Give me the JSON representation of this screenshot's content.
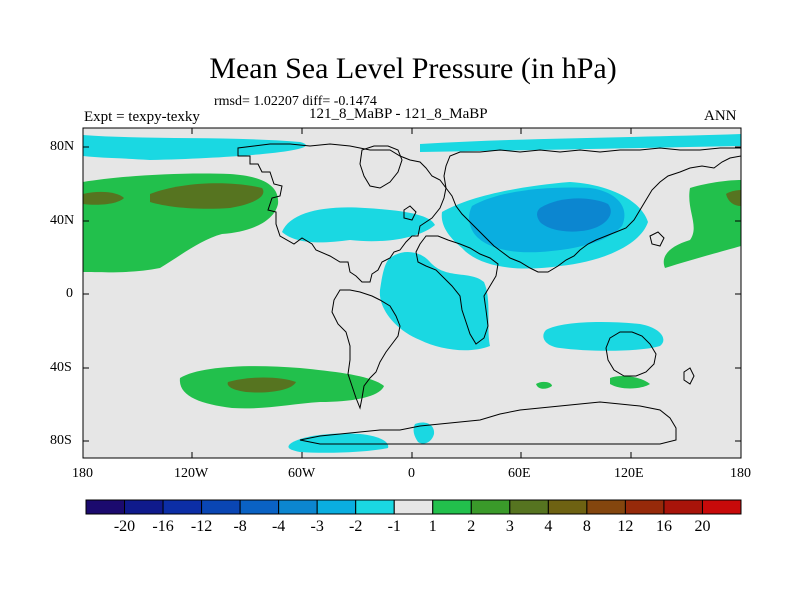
{
  "title": "Mean Sea Level Pressure (in hPa)",
  "stats": "rmsd= 1.02207 diff= -0.1474",
  "experiment": "Expt = texpy-texky",
  "comparison": "121_8_MaBP - 121_8_MaBP",
  "period": "ANN",
  "lat_ticks": [
    "80N",
    "40N",
    "0",
    "40S",
    "80S"
  ],
  "lon_ticks": [
    "180",
    "120W",
    "60W",
    "0",
    "60E",
    "120E",
    "180"
  ],
  "legend": {
    "labels": [
      "-20",
      "-16",
      "-12",
      "-8",
      "-4",
      "-3",
      "-2",
      "-1",
      "1",
      "2",
      "3",
      "4",
      "8",
      "12",
      "16",
      "20"
    ],
    "colors": [
      "#1b0a6e",
      "#0f1a8c",
      "#0c2ea6",
      "#0a46b4",
      "#0a62c4",
      "#0c86d0",
      "#0aaee0",
      "#1ad8e2",
      "#e6e6e6",
      "#22c04c",
      "#3a9a2a",
      "#567420",
      "#6e6212",
      "#84460e",
      "#962a0a",
      "#a8140a",
      "#c80a0a"
    ]
  },
  "map_colors": {
    "background": "#e6e6e6",
    "light_blue": "#1ad8e2",
    "blue": "#0aaee0",
    "dark_blue": "#0c86d0",
    "green": "#22c04c",
    "dark_green": "#567420"
  }
}
